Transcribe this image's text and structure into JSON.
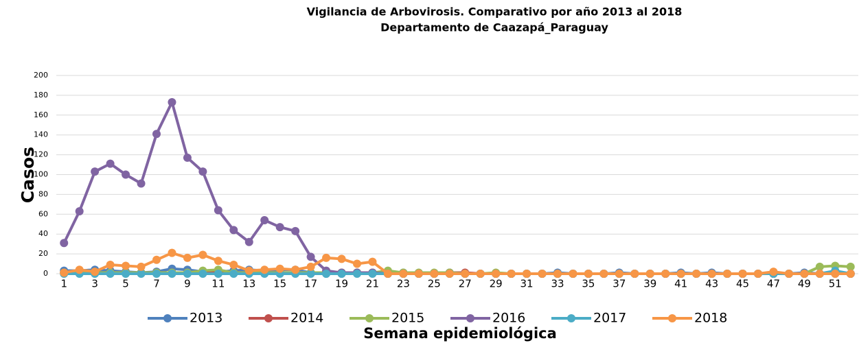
{
  "chart_data": {
    "type": "line",
    "title": "Vigilancia de Arbovirosis. Comparativo por año 2013 al 2018",
    "subtitle": "Departamento de Caazapá_Paraguay",
    "y_label": "Casos",
    "x_label": "Semana epidemiológica",
    "categories": [
      1,
      null,
      3,
      null,
      5,
      null,
      7,
      null,
      9,
      null,
      11,
      null,
      13,
      null,
      15,
      null,
      17,
      null,
      19,
      null,
      21,
      null,
      23,
      null,
      25,
      null,
      27,
      null,
      29,
      null,
      31,
      null,
      33,
      null,
      35,
      null,
      37,
      null,
      39,
      null,
      41,
      null,
      43,
      null,
      45,
      null,
      47,
      null,
      49,
      null,
      51,
      null
    ],
    "ylim": [
      0,
      200
    ],
    "yticks": [
      0,
      20,
      40,
      60,
      80,
      100,
      120,
      140,
      160,
      180,
      200
    ],
    "grid": true,
    "legend": "bottom",
    "series": [
      {
        "name": "2013",
        "color": "#4f81bd",
        "values": [
          3,
          3,
          4,
          3,
          2,
          1,
          2,
          5,
          4,
          2,
          2,
          3,
          4,
          3,
          4,
          4,
          1,
          0,
          0,
          1,
          1,
          0,
          1,
          0,
          0,
          1,
          0,
          0,
          0,
          0,
          0,
          0,
          1,
          0,
          0,
          0,
          1,
          0,
          0,
          0,
          1,
          0,
          1,
          0,
          0,
          0,
          0,
          0,
          1,
          0,
          1,
          0
        ]
      },
      {
        "name": "2014",
        "color": "#c0504d",
        "values": [
          1,
          1,
          1,
          1,
          1,
          1,
          1,
          1,
          1,
          1,
          1,
          1,
          1,
          1,
          1,
          1,
          1,
          1,
          1,
          1,
          1,
          0,
          0,
          0,
          0,
          1,
          1,
          0,
          0,
          0,
          0,
          0,
          0,
          0,
          0,
          0,
          0,
          0,
          0,
          0,
          0,
          0,
          0,
          0,
          0,
          0,
          0,
          0,
          0,
          0,
          1,
          0
        ]
      },
      {
        "name": "2015",
        "color": "#9bbb59",
        "values": [
          1,
          1,
          1,
          1,
          1,
          1,
          1,
          1,
          1,
          3,
          4,
          1,
          1,
          1,
          1,
          1,
          1,
          1,
          1,
          1,
          1,
          3,
          1,
          1,
          1,
          1,
          0,
          0,
          1,
          0,
          0,
          0,
          0,
          0,
          0,
          0,
          0,
          0,
          0,
          0,
          0,
          0,
          0,
          0,
          0,
          0,
          0,
          0,
          0,
          7,
          8,
          7
        ]
      },
      {
        "name": "2016",
        "color": "#8064a2",
        "values": [
          31,
          63,
          103,
          111,
          100,
          91,
          141,
          173,
          117,
          103,
          64,
          44,
          32,
          54,
          47,
          43,
          17,
          3,
          1,
          1,
          1,
          0,
          0,
          0,
          0,
          0,
          0,
          0,
          0,
          0,
          0,
          0,
          0,
          0,
          0,
          0,
          0,
          0,
          0,
          0,
          0,
          0,
          0,
          0,
          0,
          0,
          0,
          0,
          0,
          0,
          0,
          0
        ]
      },
      {
        "name": "2017",
        "color": "#4bacc6",
        "values": [
          0,
          0,
          0,
          0,
          0,
          0,
          0,
          0,
          0,
          0,
          0,
          0,
          0,
          0,
          0,
          0,
          0,
          0,
          0,
          0,
          0,
          0,
          0,
          0,
          0,
          0,
          0,
          0,
          0,
          0,
          0,
          0,
          0,
          0,
          0,
          0,
          0,
          0,
          0,
          0,
          0,
          0,
          0,
          0,
          0,
          0,
          0,
          0,
          0,
          0,
          3,
          0
        ]
      },
      {
        "name": "2018",
        "color": "#f79646",
        "values": [
          1,
          4,
          2,
          9,
          8,
          7,
          14,
          21,
          16,
          19,
          13,
          9,
          3,
          4,
          5,
          4,
          7,
          16,
          15,
          10,
          12,
          0,
          0,
          0,
          0,
          0,
          0,
          0,
          0,
          0,
          0,
          0,
          0,
          0,
          0,
          0,
          0,
          0,
          0,
          0,
          0,
          0,
          0,
          0,
          0,
          0,
          2,
          0,
          0,
          0,
          0,
          0
        ]
      }
    ]
  }
}
